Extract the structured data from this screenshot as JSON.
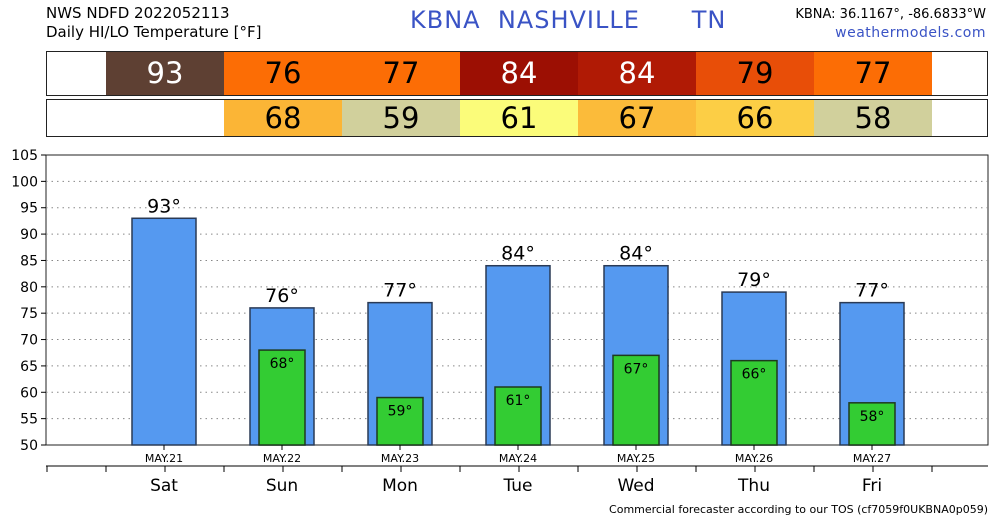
{
  "header": {
    "source_line": "NWS NDFD 2022052113",
    "subtitle": "Daily HI/LO Temperature [°F]",
    "station_code": "KBNA",
    "station_name": "NASHVILLE",
    "state": "TN",
    "coords": "KBNA: 36.1167°, -86.6833°W",
    "site": "weathermodels.com"
  },
  "hi_strip": [
    {
      "value": "93",
      "color": "#5e4033",
      "text_color": "#ffffff"
    },
    {
      "value": "76",
      "color": "#fc6d05",
      "text_color": "#000000"
    },
    {
      "value": "77",
      "color": "#fc6d05",
      "text_color": "#000000"
    },
    {
      "value": "84",
      "color": "#9c0f03",
      "text_color": "#ffffff"
    },
    {
      "value": "84",
      "color": "#b01a05",
      "text_color": "#ffffff"
    },
    {
      "value": "79",
      "color": "#e84e08",
      "text_color": "#000000"
    },
    {
      "value": "77",
      "color": "#fc6d05",
      "text_color": "#000000"
    }
  ],
  "lo_strip": [
    {
      "value": "",
      "color": "#ffffff",
      "text_color": "#000000"
    },
    {
      "value": "68",
      "color": "#fbb536",
      "text_color": "#000000"
    },
    {
      "value": "59",
      "color": "#d1d09c",
      "text_color": "#000000"
    },
    {
      "value": "61",
      "color": "#fbfc7a",
      "text_color": "#000000"
    },
    {
      "value": "67",
      "color": "#fbbb3a",
      "text_color": "#000000"
    },
    {
      "value": "66",
      "color": "#fcce45",
      "text_color": "#000000"
    },
    {
      "value": "58",
      "color": "#d1d09c",
      "text_color": "#000000"
    }
  ],
  "chart_data": {
    "type": "bar",
    "categories": [
      "Sat",
      "Sun",
      "Mon",
      "Tue",
      "Wed",
      "Thu",
      "Fri"
    ],
    "dates": [
      "MAY.21",
      "MAY.22",
      "MAY.23",
      "MAY.24",
      "MAY.25",
      "MAY.26",
      "MAY.27"
    ],
    "series": [
      {
        "values": [
          93,
          76,
          77,
          84,
          84,
          79,
          77
        ],
        "labels": [
          "93°",
          "76°",
          "77°",
          "84°",
          "84°",
          "79°",
          "77°"
        ],
        "color": "#5599f0"
      },
      {
        "values": [
          null,
          68,
          59,
          61,
          67,
          66,
          58
        ],
        "labels": [
          "",
          "68°",
          "59°",
          "61°",
          "67°",
          "66°",
          "58°"
        ],
        "color": "#33cc33"
      }
    ],
    "yticks": [
      "50",
      "55",
      "60",
      "65",
      "70",
      "75",
      "80",
      "85",
      "90",
      "95",
      "100",
      "105"
    ],
    "ylim": [
      50,
      105
    ],
    "grid": true
  },
  "footer": "Commercial forecaster according to our TOS (cf7059f0UKBNA0p059)"
}
